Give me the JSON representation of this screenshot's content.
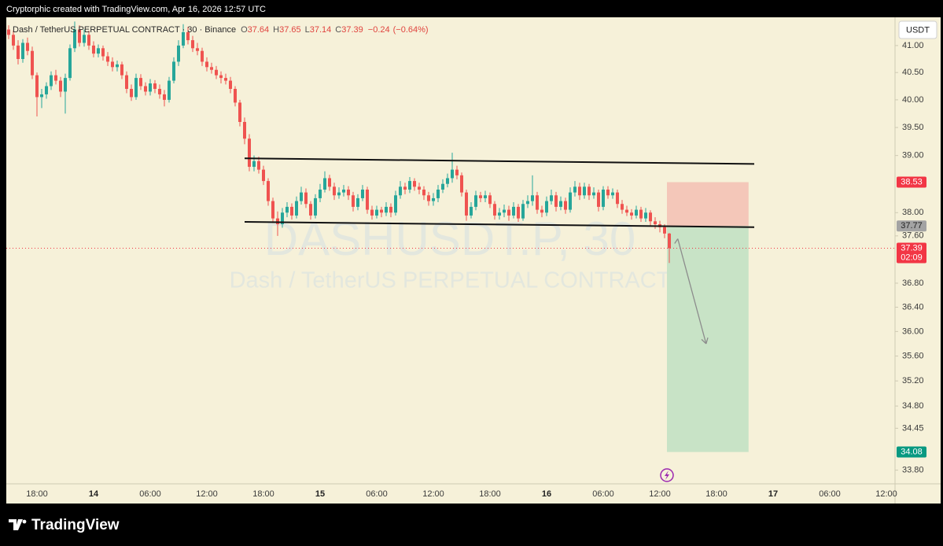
{
  "chart_data": {
    "type": "candlestick",
    "credit": "Cryptorphic created with TradingView.com, Apr 16, 2026 12:57 UTC",
    "legend": {
      "symbol": "Dash / TetherUS PERPETUAL CONTRACT · 30 · Binance",
      "o_label": "O",
      "open": 37.64,
      "h_label": "H",
      "high": 37.65,
      "l_label": "L",
      "low": 37.14,
      "c_label": "C",
      "close": 37.39,
      "change": {
        "value": -0.24,
        "label": "−0.24"
      },
      "change_pct": {
        "value": -0.64,
        "label": "(−0.64%)"
      }
    },
    "watermark": {
      "symbol": "DASHUSDT.P, 30",
      "description": "Dash / TetherUS PERPETUAL CONTRACT"
    },
    "currency": "USDT",
    "brand": "TradingView",
    "up_color": "#26a69a",
    "down_color": "#ef5350",
    "log_scale": true,
    "ylim": [
      33.59,
      41.53
    ],
    "yticks": [
      {
        "value": 41,
        "label": "41.00"
      },
      {
        "value": 40.5,
        "label": "40.50"
      },
      {
        "value": 40,
        "label": "40.00"
      },
      {
        "value": 39.5,
        "label": "39.50"
      },
      {
        "value": 39,
        "label": "39.00"
      },
      {
        "value": 38,
        "label": "38.00"
      },
      {
        "value": 37.6,
        "label": "37.60"
      },
      {
        "value": 36.8,
        "label": "36.80"
      },
      {
        "value": 36.4,
        "label": "36.40"
      },
      {
        "value": 36,
        "label": "36.00"
      },
      {
        "value": 35.6,
        "label": "35.60"
      },
      {
        "value": 35.2,
        "label": "35.20"
      },
      {
        "value": 34.8,
        "label": "34.80"
      },
      {
        "value": 34.45,
        "label": "34.45"
      },
      {
        "value": 33.8,
        "label": "33.80"
      }
    ],
    "categories": [
      null,
      null,
      null,
      null,
      null,
      null,
      "18:00",
      null,
      null,
      null,
      null,
      null,
      null,
      null,
      null,
      null,
      null,
      null,
      "14",
      null,
      null,
      null,
      null,
      null,
      null,
      null,
      null,
      null,
      null,
      null,
      "06:00",
      null,
      null,
      null,
      null,
      null,
      null,
      null,
      null,
      null,
      null,
      null,
      "12:00",
      null,
      null,
      null,
      null,
      null,
      null,
      null,
      null,
      null,
      null,
      null,
      "18:00",
      null,
      null,
      null,
      null,
      null,
      null,
      null,
      null,
      null,
      null,
      null,
      "15",
      null,
      null,
      null,
      null,
      null,
      null,
      null,
      null,
      null,
      null,
      null,
      "06:00",
      null,
      null,
      null,
      null,
      null,
      null,
      null,
      null,
      null,
      null,
      null,
      "12:00",
      null,
      null,
      null,
      null,
      null,
      null,
      null,
      null,
      null,
      null,
      null,
      "18:00",
      null,
      null,
      null,
      null,
      null,
      null,
      null,
      null,
      null,
      null,
      null,
      "16",
      null,
      null,
      null,
      null,
      null,
      null,
      null,
      null,
      null,
      null,
      null,
      "06:00",
      null,
      null,
      null,
      null,
      null,
      null,
      null,
      null,
      null,
      null,
      null,
      "12:00",
      null,
      null,
      null,
      null,
      null,
      null,
      null,
      null,
      null,
      null,
      null,
      "18:00",
      null,
      null,
      null,
      null,
      null,
      null,
      null,
      null,
      null,
      null,
      null,
      "17",
      null,
      null,
      null,
      null,
      null,
      null,
      null,
      null,
      null,
      null,
      null,
      "06:00",
      null,
      null,
      null,
      null,
      null,
      null,
      null,
      null,
      null,
      null,
      null,
      "12:00"
    ],
    "candles": [
      [
        41.3,
        41.38,
        41.12,
        41.2
      ],
      [
        41.2,
        41.28,
        40.92,
        41.0
      ],
      [
        41.0,
        41.1,
        40.65,
        40.75
      ],
      [
        40.75,
        41.12,
        40.68,
        41.05
      ],
      [
        41.05,
        41.15,
        40.82,
        40.9
      ],
      [
        40.9,
        40.98,
        40.38,
        40.45
      ],
      [
        40.45,
        40.5,
        39.7,
        40.05
      ],
      [
        40.05,
        40.2,
        39.85,
        40.1
      ],
      [
        40.1,
        40.32,
        40.02,
        40.25
      ],
      [
        40.25,
        40.52,
        40.18,
        40.45
      ],
      [
        40.45,
        40.55,
        40.28,
        40.35
      ],
      [
        40.35,
        40.42,
        40.05,
        40.15
      ],
      [
        40.15,
        40.48,
        39.75,
        40.4
      ],
      [
        40.4,
        41.02,
        40.35,
        40.95
      ],
      [
        40.95,
        41.45,
        40.88,
        41.3
      ],
      [
        41.3,
        41.38,
        40.98,
        41.05
      ],
      [
        41.05,
        41.3,
        40.98,
        41.2
      ],
      [
        41.2,
        41.28,
        40.92,
        41.0
      ],
      [
        41.0,
        41.08,
        40.78,
        40.85
      ],
      [
        40.85,
        41.02,
        40.78,
        40.95
      ],
      [
        40.95,
        41.0,
        40.72,
        40.8
      ],
      [
        40.8,
        40.88,
        40.62,
        40.7
      ],
      [
        40.7,
        40.78,
        40.52,
        40.6
      ],
      [
        40.6,
        40.72,
        40.52,
        40.65
      ],
      [
        40.65,
        40.7,
        40.38,
        40.45
      ],
      [
        40.45,
        40.52,
        40.12,
        40.2
      ],
      [
        40.2,
        40.28,
        39.98,
        40.05
      ],
      [
        40.05,
        40.48,
        40.0,
        40.4
      ],
      [
        40.4,
        40.47,
        40.18,
        40.25
      ],
      [
        40.25,
        40.32,
        40.08,
        40.15
      ],
      [
        40.15,
        40.38,
        40.08,
        40.3
      ],
      [
        40.3,
        40.36,
        40.12,
        40.2
      ],
      [
        40.2,
        40.28,
        40.02,
        40.1
      ],
      [
        40.1,
        40.18,
        39.88,
        40.0
      ],
      [
        40.0,
        40.42,
        39.95,
        40.35
      ],
      [
        40.35,
        40.78,
        40.3,
        40.7
      ],
      [
        40.7,
        41.1,
        40.62,
        41.0
      ],
      [
        41.0,
        41.4,
        40.95,
        41.25
      ],
      [
        41.25,
        41.35,
        41.02,
        41.1
      ],
      [
        41.1,
        41.18,
        40.88,
        40.95
      ],
      [
        40.95,
        41.05,
        40.82,
        40.9
      ],
      [
        40.9,
        40.96,
        40.62,
        40.7
      ],
      [
        40.7,
        40.78,
        40.52,
        40.6
      ],
      [
        40.6,
        40.68,
        40.48,
        40.55
      ],
      [
        40.55,
        40.62,
        40.38,
        40.45
      ],
      [
        40.45,
        40.52,
        40.3,
        40.4
      ],
      [
        40.4,
        40.48,
        40.28,
        40.35
      ],
      [
        40.35,
        40.42,
        40.12,
        40.2
      ],
      [
        40.2,
        40.25,
        39.88,
        39.95
      ],
      [
        39.95,
        40.0,
        39.52,
        39.6
      ],
      [
        39.6,
        39.68,
        39.2,
        39.3
      ],
      [
        39.3,
        39.38,
        38.72,
        38.8
      ],
      [
        38.8,
        39.0,
        38.72,
        38.9
      ],
      [
        38.9,
        38.98,
        38.68,
        38.75
      ],
      [
        38.75,
        38.82,
        38.48,
        38.55
      ],
      [
        38.55,
        38.6,
        38.12,
        38.2
      ],
      [
        38.2,
        38.26,
        37.82,
        37.9
      ],
      [
        37.9,
        38.02,
        37.6,
        37.8
      ],
      [
        37.8,
        38.08,
        37.74,
        38.0
      ],
      [
        38.0,
        38.18,
        37.92,
        38.1
      ],
      [
        38.1,
        38.16,
        37.88,
        37.95
      ],
      [
        37.95,
        38.28,
        37.9,
        38.2
      ],
      [
        38.2,
        38.45,
        38.14,
        38.35
      ],
      [
        38.35,
        38.42,
        38.08,
        38.15
      ],
      [
        38.15,
        38.2,
        37.88,
        37.95
      ],
      [
        37.95,
        38.32,
        37.9,
        38.25
      ],
      [
        38.25,
        38.5,
        38.18,
        38.4
      ],
      [
        38.4,
        38.72,
        38.35,
        38.6
      ],
      [
        38.6,
        38.66,
        38.38,
        38.45
      ],
      [
        38.45,
        38.52,
        38.22,
        38.3
      ],
      [
        38.3,
        38.44,
        38.24,
        38.35
      ],
      [
        38.35,
        38.48,
        38.28,
        38.4
      ],
      [
        38.4,
        38.46,
        38.22,
        38.3
      ],
      [
        38.3,
        38.36,
        38.02,
        38.1
      ],
      [
        38.1,
        38.32,
        38.04,
        38.25
      ],
      [
        38.25,
        38.48,
        38.2,
        38.4
      ],
      [
        38.4,
        38.45,
        37.98,
        38.05
      ],
      [
        38.05,
        38.12,
        37.88,
        37.95
      ],
      [
        37.95,
        38.12,
        37.9,
        38.05
      ],
      [
        38.05,
        38.1,
        37.92,
        38.0
      ],
      [
        38.0,
        38.18,
        37.94,
        38.1
      ],
      [
        38.1,
        38.16,
        37.92,
        38.0
      ],
      [
        38.0,
        38.38,
        37.95,
        38.3
      ],
      [
        38.3,
        38.55,
        38.24,
        38.45
      ],
      [
        38.45,
        38.52,
        38.32,
        38.4
      ],
      [
        38.4,
        38.62,
        38.34,
        38.55
      ],
      [
        38.55,
        38.6,
        38.38,
        38.45
      ],
      [
        38.45,
        38.52,
        38.32,
        38.4
      ],
      [
        38.4,
        38.46,
        38.22,
        38.3
      ],
      [
        38.3,
        38.36,
        38.12,
        38.2
      ],
      [
        38.2,
        38.34,
        38.12,
        38.25
      ],
      [
        38.25,
        38.48,
        38.18,
        38.4
      ],
      [
        38.4,
        38.58,
        38.34,
        38.5
      ],
      [
        38.5,
        38.68,
        38.44,
        38.6
      ],
      [
        38.6,
        39.05,
        38.52,
        38.75
      ],
      [
        38.75,
        38.82,
        38.58,
        38.65
      ],
      [
        38.65,
        38.7,
        38.28,
        38.35
      ],
      [
        38.35,
        38.4,
        37.86,
        37.95
      ],
      [
        37.95,
        38.18,
        37.9,
        38.1
      ],
      [
        38.1,
        38.38,
        38.04,
        38.3
      ],
      [
        38.3,
        38.36,
        38.18,
        38.25
      ],
      [
        38.25,
        38.38,
        38.18,
        38.3
      ],
      [
        38.3,
        38.35,
        38.08,
        38.15
      ],
      [
        38.15,
        38.2,
        37.88,
        37.95
      ],
      [
        37.95,
        38.08,
        37.88,
        38.0
      ],
      [
        38.0,
        38.14,
        37.92,
        38.05
      ],
      [
        38.05,
        38.12,
        37.86,
        37.95
      ],
      [
        37.95,
        38.18,
        37.9,
        38.1
      ],
      [
        38.1,
        38.15,
        37.84,
        37.9
      ],
      [
        37.9,
        38.22,
        37.86,
        38.15
      ],
      [
        38.15,
        38.3,
        38.08,
        38.2
      ],
      [
        38.2,
        38.65,
        38.12,
        38.3
      ],
      [
        38.3,
        38.36,
        37.98,
        38.05
      ],
      [
        38.05,
        38.12,
        37.92,
        38.0
      ],
      [
        38.0,
        38.28,
        37.94,
        38.2
      ],
      [
        38.2,
        38.4,
        38.14,
        38.3
      ],
      [
        38.3,
        38.36,
        38.02,
        38.1
      ],
      [
        38.1,
        38.28,
        38.04,
        38.2
      ],
      [
        38.2,
        38.26,
        37.98,
        38.05
      ],
      [
        38.05,
        38.44,
        38.0,
        38.35
      ],
      [
        38.35,
        38.55,
        38.28,
        38.45
      ],
      [
        38.45,
        38.52,
        38.22,
        38.3
      ],
      [
        38.3,
        38.52,
        38.24,
        38.45
      ],
      [
        38.45,
        38.5,
        38.22,
        38.3
      ],
      [
        38.3,
        38.44,
        38.24,
        38.35
      ],
      [
        38.35,
        38.4,
        38.02,
        38.1
      ],
      [
        38.1,
        38.46,
        38.04,
        38.4
      ],
      [
        38.4,
        38.46,
        38.24,
        38.3
      ],
      [
        38.3,
        38.42,
        38.24,
        38.35
      ],
      [
        38.35,
        38.4,
        38.08,
        38.15
      ],
      [
        38.15,
        38.22,
        37.98,
        38.05
      ],
      [
        38.05,
        38.12,
        37.94,
        38.0
      ],
      [
        38.0,
        38.06,
        37.88,
        37.95
      ],
      [
        37.95,
        38.12,
        37.9,
        38.05
      ],
      [
        38.05,
        38.1,
        37.84,
        37.9
      ],
      [
        37.9,
        38.08,
        37.84,
        38.0
      ],
      [
        38.0,
        38.04,
        37.78,
        37.85
      ],
      [
        37.85,
        37.92,
        37.72,
        37.8
      ],
      [
        37.8,
        37.86,
        37.66,
        37.75
      ],
      [
        37.75,
        37.8,
        37.56,
        37.64
      ],
      [
        37.64,
        37.65,
        37.14,
        37.39
      ],
      null,
      null,
      null,
      null,
      null,
      null,
      null,
      null,
      null,
      null,
      null,
      null,
      null,
      null,
      null,
      null,
      null,
      null,
      null,
      null,
      null,
      null,
      null,
      null,
      null,
      null,
      null,
      null,
      null,
      null,
      null,
      null,
      null,
      null,
      null,
      null,
      null,
      null,
      null,
      null,
      null,
      null,
      null,
      null,
      null,
      null
    ],
    "drawings": {
      "resistance": {
        "x": [
          50,
          158
        ],
        "y": [
          38.95,
          38.85
        ],
        "color": "#111111"
      },
      "support": {
        "x": [
          50,
          158
        ],
        "y": [
          37.84,
          37.75
        ],
        "color": "#111111"
      },
      "position": {
        "x": [
          139.5,
          156.8
        ],
        "entry": 37.77,
        "stop": 38.53,
        "target": 34.08,
        "stop_color": "#f4c7b9",
        "target_color": "#c8e3c6"
      },
      "arrow": {
        "x": [
          141.8,
          147.8
        ],
        "y": [
          37.55,
          35.8
        ],
        "color": "#8c8c8c"
      }
    },
    "price_tags": [
      {
        "value": 38.53,
        "color": "#f23645"
      },
      {
        "value": 37.77,
        "color": "#a3a3a3"
      },
      {
        "value": 37.39,
        "color": "#f23645",
        "countdown": "02:09"
      },
      {
        "value": 34.08,
        "color": "#089981"
      }
    ],
    "current_price_line": {
      "value": 37.39,
      "color": "#f23645"
    }
  }
}
